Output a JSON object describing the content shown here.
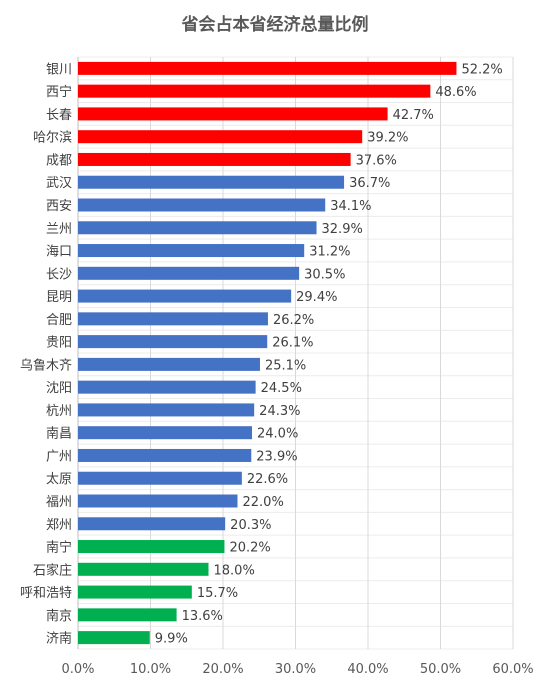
{
  "chart_data": {
    "type": "bar",
    "orientation": "horizontal",
    "title": "省会占本省经济总量比例",
    "xlabel": "",
    "ylabel": "",
    "xlim": [
      0,
      60
    ],
    "x_ticks": [
      "0.0%",
      "10.0%",
      "20.0%",
      "30.0%",
      "40.0%",
      "50.0%",
      "60.0%"
    ],
    "grid": true,
    "legend": "none",
    "categories": [
      "银川",
      "西宁",
      "长春",
      "哈尔滨",
      "成都",
      "武汉",
      "西安",
      "兰州",
      "海口",
      "长沙",
      "昆明",
      "合肥",
      "贵阳",
      "乌鲁木齐",
      "沈阳",
      "杭州",
      "南昌",
      "广州",
      "太原",
      "福州",
      "郑州",
      "南宁",
      "石家庄",
      "呼和浩特",
      "南京",
      "济南"
    ],
    "values": [
      52.2,
      48.6,
      42.7,
      39.2,
      37.6,
      36.7,
      34.1,
      32.9,
      31.2,
      30.5,
      29.4,
      26.2,
      26.1,
      25.1,
      24.5,
      24.3,
      24.0,
      23.9,
      22.6,
      22.0,
      20.3,
      20.2,
      18.0,
      15.7,
      13.6,
      9.9
    ],
    "value_labels": [
      "52.2%",
      "48.6%",
      "42.7%",
      "39.2%",
      "37.6%",
      "36.7%",
      "34.1%",
      "32.9%",
      "31.2%",
      "30.5%",
      "29.4%",
      "26.2%",
      "26.1%",
      "25.1%",
      "24.5%",
      "24.3%",
      "24.0%",
      "23.9%",
      "22.6%",
      "22.0%",
      "20.3%",
      "20.2%",
      "18.0%",
      "15.7%",
      "13.6%",
      "9.9%"
    ],
    "bar_colors": [
      "#ff0000",
      "#ff0000",
      "#ff0000",
      "#ff0000",
      "#ff0000",
      "#4472c4",
      "#4472c4",
      "#4472c4",
      "#4472c4",
      "#4472c4",
      "#4472c4",
      "#4472c4",
      "#4472c4",
      "#4472c4",
      "#4472c4",
      "#4472c4",
      "#4472c4",
      "#4472c4",
      "#4472c4",
      "#4472c4",
      "#4472c4",
      "#00b050",
      "#00b050",
      "#00b050",
      "#00b050",
      "#00b050"
    ]
  }
}
